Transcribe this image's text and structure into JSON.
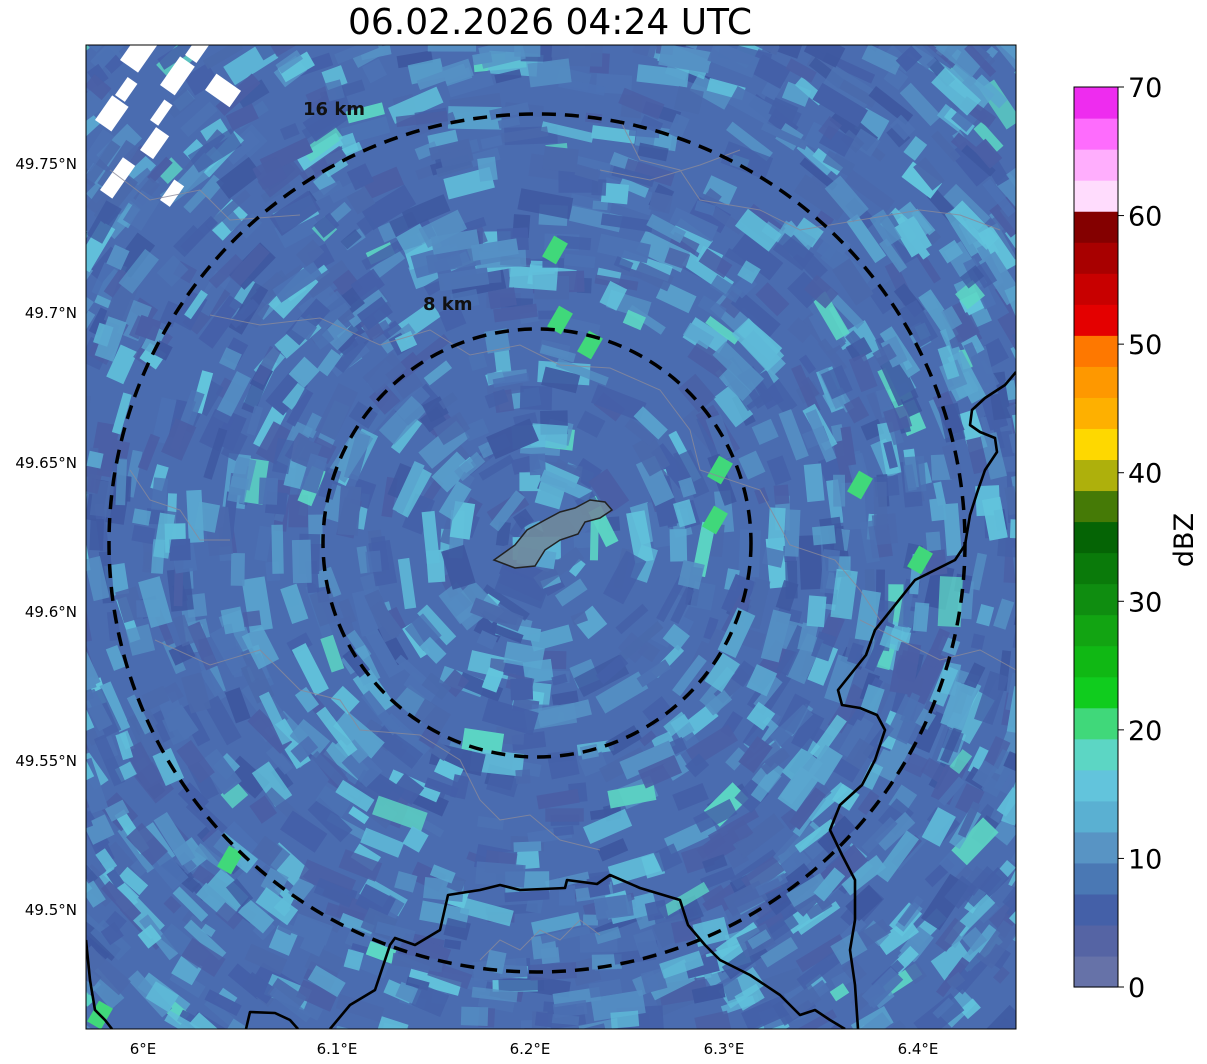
{
  "title": "06.02.2026 04:24 UTC",
  "map": {
    "lon_labels": [
      "6°E",
      "6.1°E",
      "6.2°E",
      "6.3°E",
      "6.4°E"
    ],
    "lat_labels": [
      "49.75°N",
      "49.7°N",
      "49.65°N",
      "49.6°N",
      "49.55°N",
      "49.5°N"
    ],
    "range_rings": [
      {
        "label": "8 km",
        "radius_km": 8
      },
      {
        "label": "16 km",
        "radius_km": 16
      }
    ],
    "radar_center": {
      "lon": 6.2,
      "lat": 49.62
    }
  },
  "colorbar": {
    "label": "dBZ",
    "tick_labels": [
      "0",
      "10",
      "20",
      "30",
      "40",
      "50",
      "60",
      "70"
    ],
    "colors": [
      "#6672a8",
      "#5564a4",
      "#4460a8",
      "#4a78b4",
      "#5894c4",
      "#5ab0d2",
      "#62c4dc",
      "#5cd6c4",
      "#40d87a",
      "#10cc1e",
      "#10b814",
      "#12a412",
      "#0f8d10",
      "#0a7a0a",
      "#056405",
      "#457a06",
      "#aeb00c",
      "#fed800",
      "#feb000",
      "#fe9800",
      "#fe7800",
      "#e40000",
      "#c80000",
      "#a80000",
      "#840000",
      "#ffdcfd",
      "#ffaefd",
      "#fe6cfd",
      "#ee2cef"
    ]
  },
  "chart_data": {
    "type": "heatmap",
    "title": "06.02.2026 04:24 UTC",
    "variable": "radar reflectivity",
    "units": "dBZ",
    "value_range": [
      0,
      70
    ],
    "typical_range": [
      5,
      18
    ],
    "xlim_lon": [
      5.97,
      6.45
    ],
    "ylim_lat": [
      49.46,
      49.79
    ]
  }
}
